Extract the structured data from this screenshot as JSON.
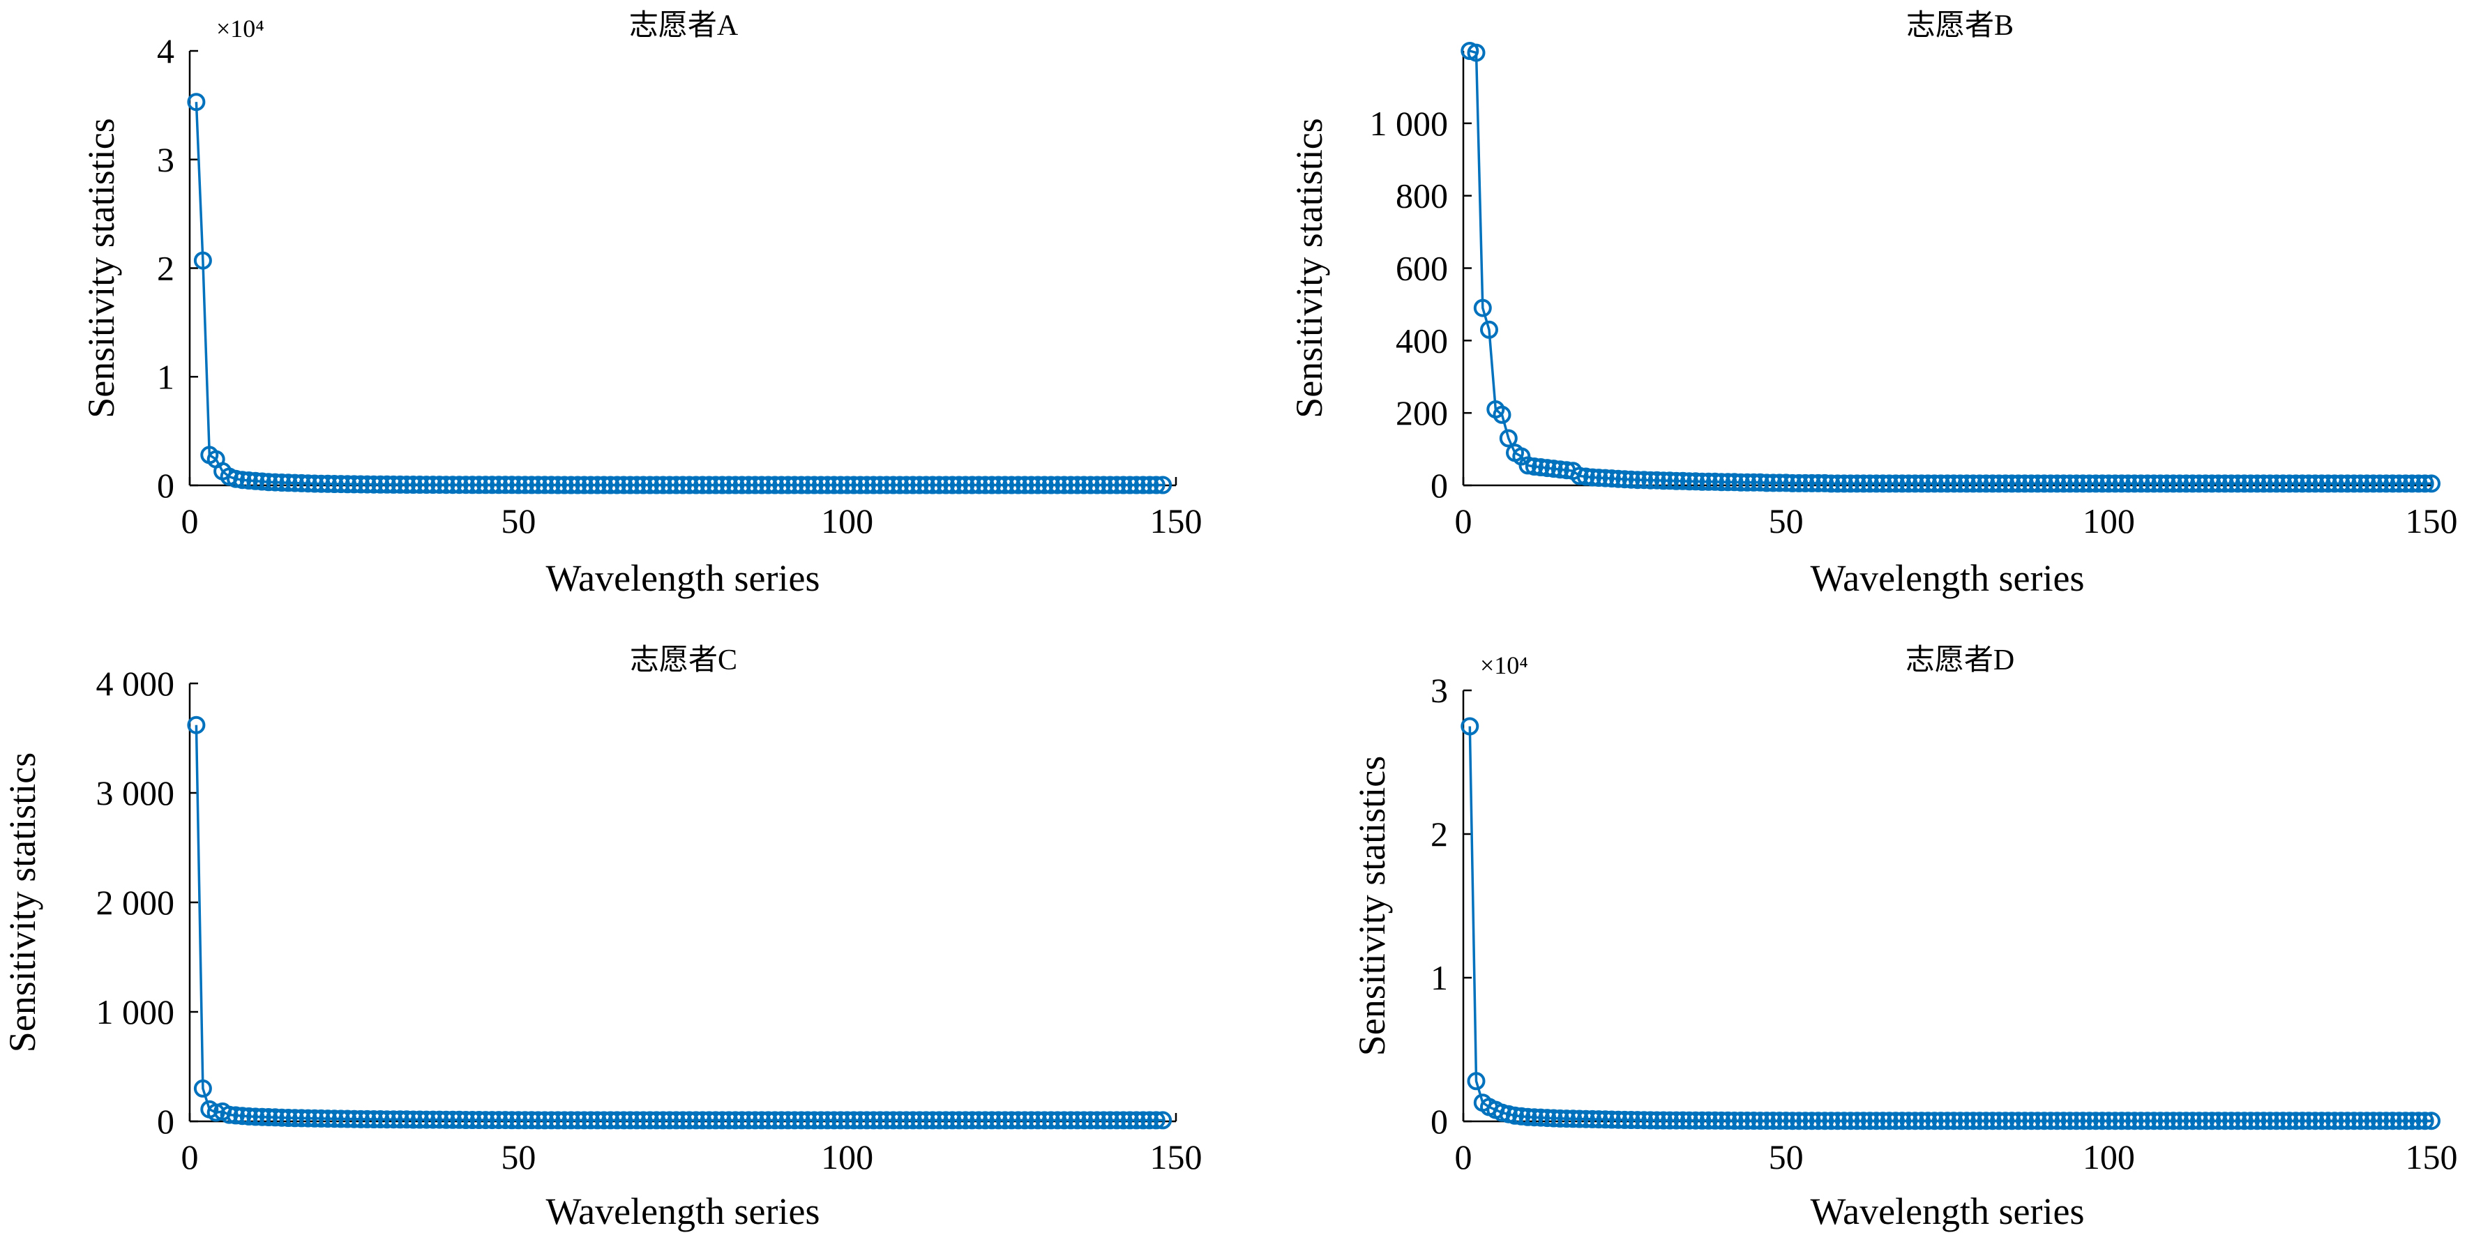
{
  "chart_data": [
    {
      "type": "line",
      "title": "志愿者A",
      "xlabel": "Wavelength series",
      "ylabel": "Sensitivity statistics",
      "xlim": [
        0,
        150
      ],
      "ylim": [
        0,
        40000
      ],
      "x_ticks": [
        0,
        50,
        100,
        150
      ],
      "y_ticks": [
        0,
        10000,
        20000,
        30000,
        40000
      ],
      "y_tick_labels": [
        "0",
        "1",
        "2",
        "3",
        "4"
      ],
      "y_exponent_label": "×10⁴",
      "grid": false,
      "marker": "circle",
      "color": "#0072BD",
      "x_start": 1,
      "values": [
        35300,
        20700,
        2800,
        2400,
        1300,
        800,
        600,
        500,
        450,
        400,
        350,
        300,
        280,
        260,
        240,
        220,
        200,
        180,
        160,
        150,
        140,
        130,
        120,
        110,
        100,
        95,
        90,
        85,
        80,
        75,
        70,
        68,
        66,
        64,
        62,
        60,
        58,
        56,
        54,
        52,
        50,
        49,
        48,
        47,
        46,
        45,
        44,
        43,
        42,
        41,
        40,
        39,
        38,
        37,
        36,
        35,
        34,
        33,
        32,
        31,
        30,
        30,
        30,
        30,
        30,
        30,
        30,
        30,
        30,
        30,
        30,
        30,
        30,
        30,
        30,
        30,
        30,
        30,
        30,
        30,
        30,
        30,
        30,
        30,
        30,
        30,
        30,
        30,
        30,
        30,
        30,
        30,
        30,
        30,
        30,
        30,
        30,
        30,
        30,
        30,
        30,
        30,
        30,
        30,
        30,
        30,
        30,
        30,
        30,
        30,
        30,
        30,
        30,
        30,
        30,
        30,
        30,
        30,
        30,
        30,
        30,
        30,
        30,
        30,
        30,
        30,
        30,
        30,
        30,
        30,
        30,
        30,
        30,
        30,
        30,
        30,
        30,
        30,
        30,
        30,
        30,
        30,
        30,
        30,
        30,
        30,
        30,
        30
      ]
    },
    {
      "type": "line",
      "title": "志愿者B",
      "xlabel": "Wavelength series",
      "ylabel": "Sensitivity statistics",
      "xlim": [
        0,
        150
      ],
      "ylim": [
        0,
        1200
      ],
      "x_ticks": [
        0,
        50,
        100,
        150
      ],
      "y_ticks": [
        0,
        200,
        400,
        600,
        800,
        1000
      ],
      "y_tick_labels": [
        "0",
        "200",
        "400",
        "600",
        "800",
        "1 000"
      ],
      "grid": false,
      "marker": "circle",
      "color": "#0072BD",
      "x_start": 1,
      "values": [
        1200,
        1195,
        490,
        430,
        210,
        195,
        130,
        90,
        80,
        55,
        52,
        50,
        48,
        46,
        44,
        42,
        40,
        26,
        24,
        22,
        21,
        20,
        19,
        18,
        17,
        16,
        15,
        15,
        14,
        14,
        13,
        13,
        12,
        12,
        11,
        11,
        10,
        10,
        10,
        9,
        9,
        9,
        8,
        8,
        8,
        8,
        7,
        7,
        7,
        7,
        6,
        6,
        6,
        6,
        6,
        6,
        5,
        5,
        5,
        5,
        5,
        5,
        5,
        5,
        5,
        5,
        5,
        5,
        5,
        5,
        5,
        5,
        5,
        5,
        5,
        5,
        5,
        5,
        5,
        5,
        5,
        5,
        5,
        5,
        5,
        5,
        5,
        5,
        5,
        5,
        5,
        5,
        5,
        5,
        5,
        5,
        5,
        5,
        5,
        5,
        5,
        5,
        5,
        5,
        5,
        5,
        5,
        5,
        5,
        5,
        5,
        5,
        5,
        5,
        5,
        5,
        5,
        5,
        5,
        5,
        5,
        5,
        5,
        5,
        5,
        5,
        5,
        5,
        5,
        5,
        5,
        5,
        5,
        5,
        5,
        5,
        5,
        5,
        5,
        5,
        5,
        5,
        5,
        5,
        5,
        5,
        5,
        5,
        5,
        5
      ]
    },
    {
      "type": "line",
      "title": "志愿者C",
      "xlabel": "Wavelength series",
      "ylabel": "Sensitivity statistics",
      "xlim": [
        0,
        150
      ],
      "ylim": [
        0,
        4000
      ],
      "x_ticks": [
        0,
        50,
        100,
        150
      ],
      "y_ticks": [
        0,
        1000,
        2000,
        3000,
        4000
      ],
      "y_tick_labels": [
        "0",
        "1 000",
        "2 000",
        "3 000",
        "4 000"
      ],
      "grid": false,
      "marker": "circle",
      "color": "#0072BD",
      "x_start": 1,
      "values": [
        3620,
        300,
        110,
        80,
        90,
        60,
        55,
        50,
        45,
        42,
        40,
        38,
        36,
        34,
        32,
        30,
        29,
        28,
        27,
        26,
        25,
        24,
        23,
        22,
        21,
        20,
        20,
        19,
        19,
        18,
        18,
        17,
        17,
        16,
        16,
        15,
        15,
        15,
        14,
        14,
        14,
        13,
        13,
        13,
        12,
        12,
        12,
        12,
        11,
        11,
        11,
        11,
        10,
        10,
        10,
        10,
        10,
        10,
        10,
        10,
        10,
        10,
        10,
        10,
        10,
        10,
        10,
        10,
        10,
        10,
        10,
        10,
        10,
        10,
        10,
        10,
        10,
        10,
        10,
        10,
        10,
        10,
        10,
        10,
        10,
        10,
        10,
        10,
        10,
        10,
        10,
        10,
        10,
        10,
        10,
        10,
        10,
        10,
        10,
        10,
        10,
        10,
        10,
        10,
        10,
        10,
        10,
        10,
        10,
        10,
        10,
        10,
        10,
        10,
        10,
        10,
        10,
        10,
        10,
        10,
        10,
        10,
        10,
        10,
        10,
        10,
        10,
        10,
        10,
        10,
        10,
        10,
        10,
        10,
        10,
        10,
        10,
        10,
        10,
        10,
        10,
        10,
        10,
        10,
        10,
        10,
        10,
        10
      ]
    },
    {
      "type": "line",
      "title": "志愿者D",
      "xlabel": "Wavelength series",
      "ylabel": "Sensitivity statistics",
      "xlim": [
        0,
        150
      ],
      "ylim": [
        0,
        30000
      ],
      "x_ticks": [
        0,
        50,
        100,
        150
      ],
      "y_ticks": [
        0,
        10000,
        20000,
        30000
      ],
      "y_tick_labels": [
        "0",
        "1",
        "2",
        "3"
      ],
      "y_exponent_label": "×10⁴",
      "grid": false,
      "marker": "circle",
      "color": "#0072BD",
      "x_start": 1,
      "values": [
        27500,
        2800,
        1300,
        1000,
        800,
        600,
        500,
        400,
        350,
        300,
        280,
        260,
        240,
        220,
        200,
        190,
        180,
        170,
        160,
        150,
        140,
        130,
        120,
        110,
        100,
        95,
        90,
        85,
        80,
        75,
        72,
        70,
        68,
        66,
        64,
        62,
        60,
        58,
        56,
        54,
        52,
        50,
        49,
        48,
        47,
        46,
        45,
        44,
        43,
        42,
        41,
        40,
        40,
        40,
        40,
        40,
        40,
        40,
        40,
        40,
        40,
        40,
        40,
        40,
        40,
        40,
        40,
        40,
        40,
        40,
        40,
        40,
        40,
        40,
        40,
        40,
        40,
        40,
        40,
        40,
        40,
        40,
        40,
        40,
        40,
        40,
        40,
        40,
        40,
        40,
        40,
        40,
        40,
        40,
        40,
        40,
        40,
        40,
        40,
        40,
        40,
        40,
        40,
        40,
        40,
        40,
        40,
        40,
        40,
        40,
        40,
        40,
        40,
        40,
        40,
        40,
        40,
        40,
        40,
        40,
        40,
        40,
        40,
        40,
        40,
        40,
        40,
        40,
        40,
        40,
        40,
        40,
        40,
        40,
        40,
        40,
        40,
        40,
        40,
        40,
        40,
        40,
        40,
        40,
        40,
        40,
        40,
        40,
        40,
        40
      ]
    }
  ]
}
